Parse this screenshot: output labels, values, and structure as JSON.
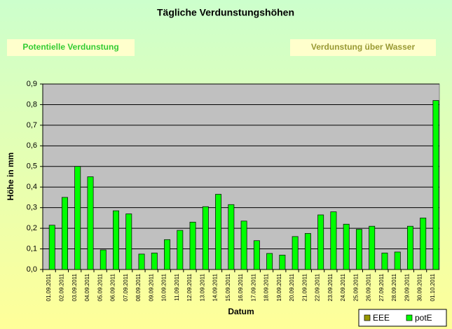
{
  "chart_data": {
    "type": "bar",
    "title": "Tägliche Verdunstungshöhen",
    "annotations": [
      "Potentielle Verdunstung",
      "Verdunstung über Wasser"
    ],
    "y_label": "Höhe in mm",
    "x_label": "Datum",
    "categories": [
      "01.09.2011",
      "02.09.2011",
      "03.09.2011",
      "04.09.2011",
      "05.09.2011",
      "06.09.2011",
      "07.09.2011",
      "08.09.2011",
      "09.09.2011",
      "10.09.2011",
      "11.09.2011",
      "12.09.2011",
      "13.09.2011",
      "14.09.2011",
      "15.09.2011",
      "16.09.2011",
      "17.09.2011",
      "18.09.2011",
      "19.09.2011",
      "20.09.2011",
      "21.09.2011",
      "22.09.2011",
      "23.09.2011",
      "24.09.2011",
      "25.09.2011",
      "26.09.2011",
      "27.09.2011",
      "28.09.2011",
      "29.09.2011",
      "30.09.2011",
      "01.10.2011"
    ],
    "series": [
      {
        "name": "EEE",
        "color": "#999900",
        "values": [
          null,
          null,
          null,
          null,
          null,
          null,
          null,
          null,
          null,
          null,
          null,
          null,
          null,
          null,
          null,
          null,
          null,
          null,
          null,
          null,
          null,
          null,
          null,
          null,
          null,
          null,
          null,
          null,
          null,
          null,
          null
        ]
      },
      {
        "name": "potE",
        "color": "#00ff00",
        "values": [
          0.215,
          0.35,
          0.5,
          0.45,
          0.095,
          0.285,
          0.27,
          0.075,
          0.08,
          0.145,
          0.19,
          0.23,
          0.305,
          0.365,
          0.315,
          0.235,
          0.14,
          0.078,
          0.07,
          0.16,
          0.175,
          0.265,
          0.28,
          0.22,
          0.195,
          0.21,
          0.08,
          0.085,
          0.21,
          0.25,
          0.82
        ]
      }
    ],
    "ylim": [
      0,
      0.9
    ],
    "yticks": [
      {
        "value": 0,
        "label": "0,0"
      },
      {
        "value": 0.1,
        "label": "0,1"
      },
      {
        "value": 0.2,
        "label": "0,2"
      },
      {
        "value": 0.3,
        "label": "0,3"
      },
      {
        "value": 0.4,
        "label": "0,4"
      },
      {
        "value": 0.5,
        "label": "0,5"
      },
      {
        "value": 0.6,
        "label": "0,6"
      },
      {
        "value": 0.7,
        "label": "0,7"
      },
      {
        "value": 0.8,
        "label": "0,8"
      },
      {
        "value": 0.9,
        "label": "0,9"
      }
    ],
    "grid": true,
    "legend": "lower right"
  }
}
